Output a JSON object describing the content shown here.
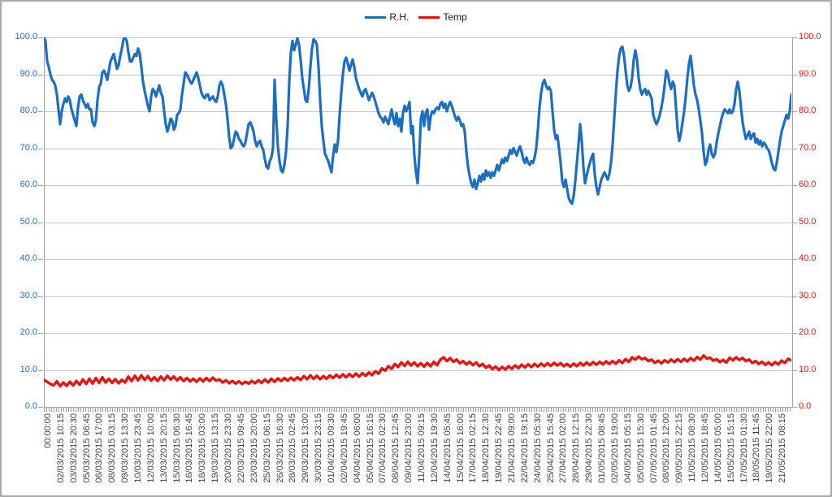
{
  "legend": {
    "items": [
      {
        "label": "R.H.",
        "color": "#1b6ec1"
      },
      {
        "label": "Temp",
        "color": "#e8140f"
      }
    ]
  },
  "chart_data": {
    "type": "line",
    "title": "",
    "grid": true,
    "legend_position": "top-center",
    "legend_entries": [
      "R.H.",
      "Temp"
    ],
    "y_axis_left": {
      "min": 0,
      "max": 100,
      "step": 10,
      "color": "#1b6ec1",
      "tick_labels": [
        "100.0",
        "90.0",
        "80.0",
        "70.0",
        "60.0",
        "50.0",
        "40.0",
        "30.0",
        "20.0",
        "10.0",
        "0.0"
      ]
    },
    "y_axis_right": {
      "min": 0,
      "max": 100,
      "step": 10,
      "color": "#e8140f",
      "tick_labels": [
        "100.0",
        "90.0",
        "80.0",
        "70.0",
        "60.0",
        "50.0",
        "40.0",
        "30.0",
        "20.0",
        "10.0",
        "0.0"
      ]
    },
    "x_ticks": [
      "00:00:00",
      "02/03/2015 10:15",
      "03/03/2015 20:30",
      "05/03/2015 06:45",
      "06/03/2015 17:00",
      "08/03/2015 03:15",
      "09/03/2015 13:30",
      "10/03/2015 23:45",
      "12/03/2015 10:00",
      "13/03/2015 20:15",
      "15/03/2015 06:30",
      "16/03/2015 16:45",
      "18/03/2015 03:00",
      "19/03/2015 13:15",
      "20/03/2015 23:30",
      "22/03/2015 09:45",
      "23/03/2015 20:00",
      "25/03/2015 06:15",
      "26/03/2015 16:30",
      "28/03/2015 02:45",
      "29/03/2015 13:00",
      "30/03/2015 23:15",
      "01/04/2015 09:30",
      "02/04/2015 19:45",
      "04/04/2015 06:00",
      "05/04/2015 16:15",
      "07/04/2015 02:30",
      "08/04/2015 12:45",
      "09/04/2015 23:00",
      "11/04/2015 09:15",
      "12/04/2015 19:30",
      "14/04/2015 05:45",
      "15/04/2015 16:00",
      "17/04/2015 02:15",
      "18/04/2015 12:30",
      "19/04/2015 22:45",
      "21/04/2015 09:00",
      "22/04/2015 19:15",
      "24/04/2015 05:30",
      "25/04/2015 15:45",
      "27/04/2015 02:00",
      "28/04/2015 12:15",
      "29/04/2015 22:30",
      "01/05/2015 08:45",
      "02/05/2015 19:00",
      "04/05/2015 05:15",
      "05/05/2015 15:30",
      "07/05/2015 01:45",
      "08/05/2015 12:00",
      "09/05/2015 22:15",
      "11/05/2015 08:30",
      "12/05/2015 18:45",
      "14/05/2015 05:00",
      "15/05/2015 15:15",
      "17/05/2015 01:30",
      "18/05/2015 11:45",
      "19/05/2015 22:00",
      "21/05/2015 08:15"
    ],
    "series": [
      {
        "name": "R.H.",
        "axis": "left",
        "color": "#1b6ec1",
        "stroke_width": 3.2,
        "values": [
          100,
          99,
          93.5,
          92,
          90,
          88.5,
          88,
          87,
          84.5,
          80.5,
          76.5,
          80,
          82,
          83.5,
          82.5,
          84,
          83,
          80.5,
          79,
          77.5,
          76,
          81,
          84,
          84.5,
          83,
          82,
          81,
          82,
          80.5,
          80.5,
          77,
          76,
          77.5,
          83,
          86.5,
          87.5,
          90.5,
          91,
          90,
          88.5,
          91,
          93.5,
          94.5,
          95.5,
          93.5,
          91.5,
          92.5,
          95,
          97,
          99.5,
          100,
          99,
          96,
          93.5,
          93.5,
          94.5,
          95.5,
          95,
          97,
          95.5,
          92,
          88,
          85.5,
          83.5,
          81.5,
          80,
          84,
          86,
          85.5,
          84,
          85.5,
          87,
          85,
          84,
          80,
          76.5,
          74.5,
          76,
          78,
          77.5,
          75,
          76,
          79,
          79.5,
          80.5,
          84.5,
          87.5,
          90.5,
          90,
          89,
          88,
          87.5,
          88.5,
          89.5,
          90.5,
          89,
          87,
          85,
          84,
          83.5,
          84.5,
          84.5,
          83,
          83.5,
          84,
          83,
          82.5,
          84,
          87,
          88,
          87,
          84.5,
          82,
          78,
          73,
          70,
          70.5,
          72.5,
          74.5,
          74,
          72.5,
          72,
          71,
          70.5,
          71.5,
          74,
          76.5,
          77,
          76,
          74.5,
          72,
          70.5,
          71.5,
          72,
          70.5,
          69.5,
          67,
          65,
          64.5,
          66.5,
          67.5,
          70,
          88.5,
          78,
          70.5,
          66.5,
          64,
          63.5,
          65.5,
          69,
          76,
          88,
          96,
          99,
          96.5,
          98,
          99.8,
          98,
          94,
          89,
          86,
          83,
          82.5,
          86,
          92,
          97,
          99.5,
          99,
          98,
          92,
          83,
          76,
          72,
          68.5,
          67.5,
          66.5,
          65,
          63.5,
          68,
          71,
          69,
          72,
          79,
          85,
          90,
          93.5,
          94.5,
          93,
          91,
          92.5,
          94,
          92,
          89,
          87.5,
          86,
          85,
          84,
          85.5,
          86,
          84.5,
          83,
          84,
          85,
          84,
          82.5,
          81,
          79.5,
          78.5,
          78,
          77,
          78.5,
          77.5,
          76.5,
          78.5,
          80.5,
          78,
          76.5,
          79.5,
          76,
          78,
          74.5,
          79.5,
          81.5,
          80,
          81,
          82.5,
          74,
          76,
          68,
          63.5,
          60.5,
          68,
          78,
          80,
          76,
          79.5,
          80.5,
          75,
          78.5,
          80,
          79.5,
          80.5,
          81,
          80.5,
          82,
          82.5,
          81,
          82,
          80,
          81.5,
          82.5,
          81.5,
          80,
          78.5,
          77.5,
          78.5,
          77.5,
          76,
          76.5,
          74.5,
          69,
          65,
          62.5,
          60.5,
          59.5,
          61.5,
          59,
          60.5,
          62.5,
          61,
          63,
          61.5,
          64,
          62.5,
          63.5,
          62,
          63.5,
          62.5,
          64,
          65.5,
          64,
          65.5,
          67,
          66,
          67.5,
          66.5,
          68,
          69.5,
          68.5,
          70,
          69,
          68,
          69.5,
          70.5,
          69,
          67,
          66,
          67.5,
          66,
          65.5,
          66.5,
          66,
          67.5,
          70,
          75,
          81,
          85,
          87.5,
          88.5,
          87,
          86,
          86.5,
          85.5,
          80,
          75,
          72.5,
          73.5,
          70,
          66,
          61,
          59.5,
          61.5,
          59,
          56.5,
          55.5,
          55,
          57,
          61,
          66,
          71,
          76.5,
          72,
          65,
          60.5,
          62.5,
          64.5,
          66,
          67.5,
          68.5,
          63,
          59.5,
          57.5,
          59.5,
          61.5,
          62.5,
          63.5,
          62.5,
          61.5,
          63,
          66,
          71,
          78,
          85,
          91,
          95,
          97,
          97.5,
          95,
          91,
          87,
          85.5,
          86.5,
          89,
          94,
          96.5,
          94,
          89,
          86,
          84.5,
          85.5,
          86,
          84.5,
          85.5,
          84.5,
          83.5,
          79,
          77.5,
          76.5,
          77.5,
          79,
          81,
          83.5,
          87,
          91,
          90,
          87.5,
          86,
          88,
          87,
          81,
          75,
          72,
          74,
          77,
          80,
          84,
          89,
          93,
          95,
          91,
          87,
          84.5,
          83,
          80.5,
          77.5,
          74,
          69,
          65.5,
          66.5,
          69.5,
          71,
          68.5,
          67.5,
          68.5,
          71.5,
          74,
          76,
          78,
          79.5,
          80.5,
          80,
          79.5,
          80.5,
          79.5,
          80,
          82,
          86,
          88,
          85.5,
          81,
          77,
          74.5,
          72.5,
          73.5,
          74.5,
          72.5,
          73.5,
          74,
          71.5,
          72.5,
          71,
          72,
          70.5,
          71.5,
          71,
          70,
          69.5,
          68,
          66,
          64.5,
          64,
          66,
          69,
          72,
          74.5,
          76,
          77.5,
          79,
          78,
          80,
          84.5
        ]
      },
      {
        "name": "Temp",
        "axis": "right",
        "color": "#e8140f",
        "stroke_width": 3.4,
        "values": [
          7.3,
          6.8,
          6.2,
          5.8,
          6.9,
          5.6,
          6.6,
          5.7,
          6.8,
          5.8,
          7.0,
          6.0,
          7.4,
          6.2,
          7.6,
          6.3,
          7.8,
          6.5,
          8.0,
          6.6,
          7.6,
          6.5,
          7.5,
          6.4,
          7.3,
          6.6,
          8.2,
          7.0,
          8.4,
          7.2,
          8.5,
          7.3,
          8.3,
          7.1,
          8.0,
          7.0,
          8.2,
          7.2,
          8.4,
          7.4,
          8.2,
          7.2,
          8.0,
          7.0,
          7.8,
          6.9,
          7.6,
          6.8,
          7.7,
          6.9,
          7.8,
          7.0,
          7.9,
          7.1,
          7.4,
          6.6,
          7.2,
          6.4,
          7.0,
          6.3,
          6.9,
          6.2,
          6.8,
          6.3,
          7.0,
          6.4,
          7.2,
          6.5,
          7.4,
          6.6,
          7.6,
          6.8,
          7.7,
          7.0,
          7.8,
          7.1,
          7.9,
          7.2,
          8.0,
          7.3,
          8.3,
          7.5,
          8.5,
          7.6,
          8.4,
          7.5,
          8.3,
          7.6,
          8.5,
          7.8,
          8.7,
          7.9,
          8.8,
          8.0,
          8.9,
          8.1,
          9.0,
          8.2,
          9.1,
          8.4,
          9.3,
          8.6,
          9.6,
          9.0,
          10.4,
          9.8,
          11.0,
          10.3,
          11.6,
          10.8,
          12.0,
          11.1,
          12.2,
          11.2,
          12.0,
          11.0,
          11.8,
          10.9,
          11.9,
          11.0,
          12.2,
          11.3,
          12.8,
          13.4,
          12.4,
          13.2,
          12.2,
          12.8,
          11.8,
          12.4,
          11.5,
          12.2,
          11.3,
          12.0,
          11.0,
          11.6,
          10.6,
          11.2,
          10.2,
          10.9,
          10.0,
          10.8,
          10.1,
          11.0,
          10.3,
          11.2,
          10.5,
          11.4,
          10.7,
          11.5,
          10.8,
          11.6,
          10.9,
          11.7,
          11.0,
          11.8,
          11.1,
          11.9,
          11.2,
          11.8,
          11.0,
          11.6,
          10.9,
          11.7,
          11.0,
          11.9,
          11.2,
          12.0,
          11.3,
          12.1,
          11.4,
          12.2,
          11.5,
          12.3,
          11.6,
          12.4,
          11.7,
          12.6,
          11.9,
          12.9,
          12.2,
          13.4,
          12.8,
          13.6,
          12.9,
          13.2,
          12.4,
          12.8,
          11.9,
          12.5,
          11.8,
          12.6,
          12.0,
          12.8,
          12.1,
          12.9,
          12.2,
          13.0,
          12.3,
          13.2,
          12.5,
          13.5,
          12.8,
          13.9,
          13.1,
          13.3,
          12.5,
          12.9,
          12.1,
          12.7,
          12.0,
          13.3,
          12.6,
          13.4,
          12.7,
          13.2,
          12.4,
          12.8,
          11.9,
          12.4,
          11.6,
          12.2,
          11.4,
          12.0,
          11.3,
          12.1,
          11.5,
          12.5,
          11.9,
          13.0,
          12.6
        ]
      }
    ]
  }
}
